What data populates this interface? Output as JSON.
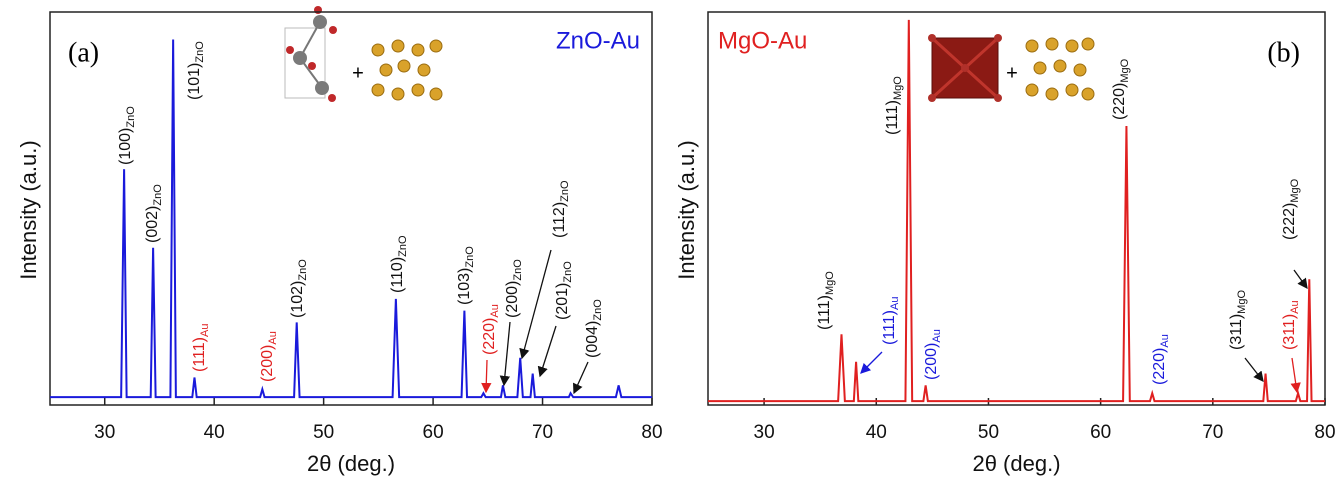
{
  "chart_data": [
    {
      "type": "line",
      "panel": "(a)",
      "title": "ZnO-Au",
      "title_color": "#1a1adb",
      "xlabel": "2θ (deg.)",
      "ylabel": "Intensity (a.u.)",
      "inset_text": "+",
      "xlim": [
        25,
        80
      ],
      "xticks": [
        30,
        40,
        50,
        60,
        70,
        80
      ],
      "ylim": [
        0,
        100
      ],
      "series": [
        {
          "color": "#1a1adb",
          "x": [
            25,
            31.5,
            31.77,
            32.0,
            34.2,
            34.42,
            34.65,
            36.0,
            36.25,
            36.5,
            38.0,
            38.2,
            38.4,
            44.2,
            44.4,
            44.6,
            47.3,
            47.54,
            47.8,
            56.3,
            56.6,
            56.9,
            62.6,
            62.86,
            63.1,
            64.4,
            64.6,
            64.8,
            66.2,
            66.38,
            66.6,
            67.7,
            67.96,
            68.2,
            68.9,
            69.1,
            69.3,
            72.4,
            72.56,
            72.8,
            76.7,
            76.95,
            77.2,
            80
          ],
          "values": [
            2,
            2,
            60,
            2,
            2,
            40,
            2,
            2,
            93,
            2,
            2,
            7,
            2,
            2,
            4,
            2,
            2,
            21,
            2,
            2,
            27,
            2,
            2,
            24,
            2,
            2,
            3,
            2,
            2,
            5,
            2,
            2,
            12,
            2,
            2,
            8,
            2,
            2,
            3,
            2,
            2,
            5,
            2,
            2
          ]
        }
      ],
      "annotations": [
        {
          "text": "(100)",
          "sub": "ZnO",
          "color": "#111"
        },
        {
          "text": "(002)",
          "sub": "ZnO",
          "color": "#111"
        },
        {
          "text": "(101)",
          "sub": "ZnO",
          "color": "#111"
        },
        {
          "text": "(111)",
          "sub": "Au",
          "color": "#e02020"
        },
        {
          "text": "(200)",
          "sub": "Au",
          "color": "#e02020"
        },
        {
          "text": "(102)",
          "sub": "ZnO",
          "color": "#111"
        },
        {
          "text": "(110)",
          "sub": "ZnO",
          "color": "#111"
        },
        {
          "text": "(103)",
          "sub": "ZnO",
          "color": "#111"
        },
        {
          "text": "(220)",
          "sub": "Au",
          "color": "#e02020"
        },
        {
          "text": "(200)",
          "sub": "ZnO",
          "color": "#111"
        },
        {
          "text": "(112)",
          "sub": "ZnO",
          "color": "#111"
        },
        {
          "text": "(201)",
          "sub": "ZnO",
          "color": "#111"
        },
        {
          "text": "(004)",
          "sub": "ZnO",
          "color": "#111"
        }
      ]
    },
    {
      "type": "line",
      "panel": "(b)",
      "title": "MgO-Au",
      "title_color": "#e02020",
      "xlabel": "2θ (deg.)",
      "ylabel": "Intensity (a.u.)",
      "inset_text": "+",
      "xlim": [
        25,
        80
      ],
      "xticks": [
        30,
        40,
        50,
        60,
        70,
        80
      ],
      "ylim": [
        0,
        100
      ],
      "series": [
        {
          "color": "#e02020",
          "x": [
            25,
            36.6,
            36.9,
            37.2,
            38.0,
            38.2,
            38.4,
            42.6,
            42.9,
            43.2,
            44.2,
            44.4,
            44.6,
            62.0,
            62.3,
            62.6,
            64.4,
            64.6,
            64.8,
            74.5,
            74.7,
            74.9,
            77.4,
            77.6,
            77.8,
            78.4,
            78.6,
            78.8,
            80
          ],
          "values": [
            1,
            1,
            18,
            1,
            1,
            11,
            1,
            1,
            98,
            1,
            1,
            5,
            1,
            1,
            71,
            1,
            1,
            3,
            1,
            1,
            8,
            1,
            1,
            3,
            1,
            1,
            32,
            1,
            1
          ]
        }
      ],
      "annotations": [
        {
          "text": "(111)",
          "sub": "MgO",
          "color": "#111"
        },
        {
          "text": "(111)",
          "sub": "Au",
          "color": "#1a1adb"
        },
        {
          "text": "(111)",
          "sub": "MgO",
          "color": "#111"
        },
        {
          "text": "(200)",
          "sub": "Au",
          "color": "#1a1adb"
        },
        {
          "text": "(220)",
          "sub": "MgO",
          "color": "#111"
        },
        {
          "text": "(220)",
          "sub": "Au",
          "color": "#1a1adb"
        },
        {
          "text": "(311)",
          "sub": "MgO",
          "color": "#111"
        },
        {
          "text": "(311)",
          "sub": "Au",
          "color": "#e02020"
        },
        {
          "text": "(222)",
          "sub": "MgO",
          "color": "#111"
        }
      ]
    }
  ]
}
